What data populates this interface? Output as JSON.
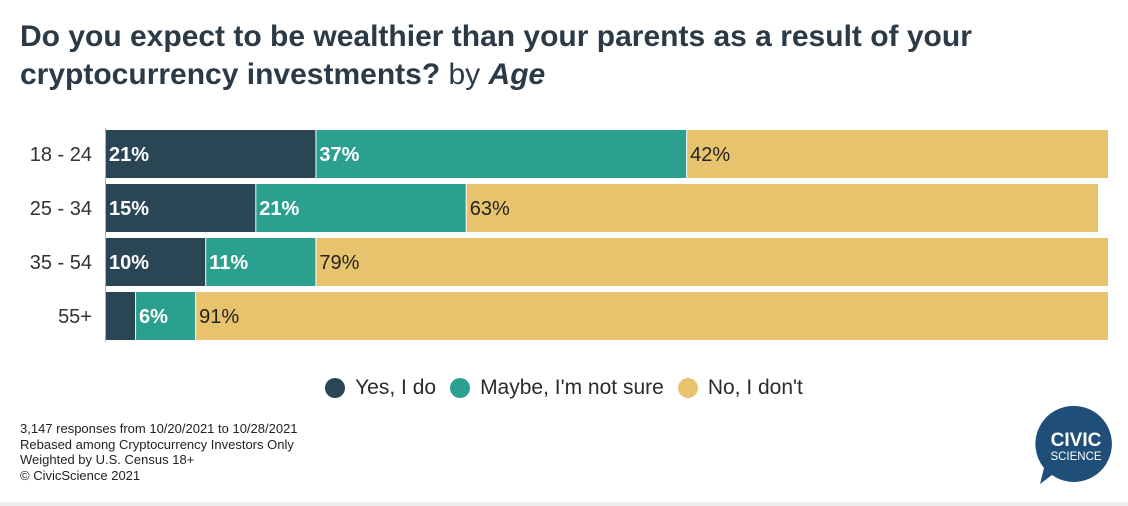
{
  "title": {
    "main": "Do you expect to be wealthier than your parents as a result of your cryptocurrency investments?",
    "by": "by",
    "segment": "Age"
  },
  "colors": {
    "yes": "#2a4553",
    "maybe": "#2ba08f",
    "no": "#e8c36e",
    "logo": "#1f4e79"
  },
  "chart_data": {
    "type": "bar",
    "orientation": "horizontal",
    "stacked": true,
    "categories": [
      "18 - 24",
      "25 - 34",
      "35 - 54",
      "55+"
    ],
    "series": [
      {
        "name": "Yes, I do",
        "values": [
          21,
          15,
          10,
          3
        ],
        "labels": [
          "21%",
          "15%",
          "10%",
          ""
        ]
      },
      {
        "name": "Maybe, I'm not sure",
        "values": [
          37,
          21,
          11,
          6
        ],
        "labels": [
          "37%",
          "21%",
          "11%",
          "6%"
        ]
      },
      {
        "name": "No, I don't",
        "values": [
          42,
          63,
          79,
          91
        ],
        "labels": [
          "42%",
          "63%",
          "79%",
          "91%"
        ]
      }
    ],
    "xlim": [
      0,
      100
    ],
    "grid": false,
    "legend_position": "bottom"
  },
  "legend": [
    {
      "label": "Yes, I do",
      "color": "#2a4553"
    },
    {
      "label": "Maybe, I'm not sure",
      "color": "#2ba08f"
    },
    {
      "label": "No, I don't",
      "color": "#e8c36e"
    }
  ],
  "notes": [
    "3,147 responses from 10/20/2021 to 10/28/2021",
    "Rebased among Cryptocurrency Investors Only",
    "Weighted by U.S. Census 18+",
    "© CivicScience 2021"
  ],
  "logo": {
    "line1": "CIVIC",
    "line2": "SCIENCE"
  }
}
